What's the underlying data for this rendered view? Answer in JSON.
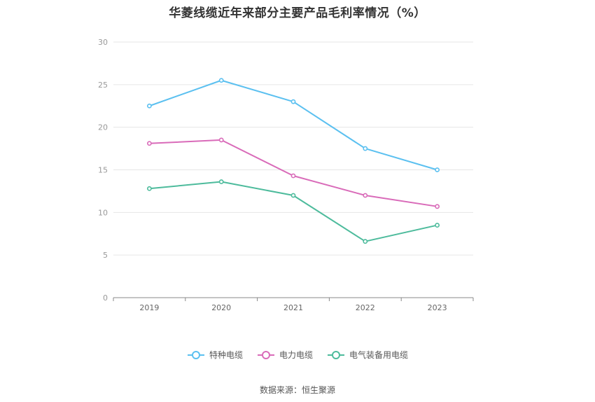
{
  "chart_data": {
    "type": "line",
    "title": "华菱线缆近年来部分主要产品毛利率情况（%）",
    "categories": [
      "2019",
      "2020",
      "2021",
      "2022",
      "2023"
    ],
    "ylim": [
      0,
      30
    ],
    "yticks": [
      0,
      5,
      10,
      15,
      20,
      25,
      30
    ],
    "grid": true,
    "legend_position": "bottom",
    "series": [
      {
        "name": "特种电缆",
        "color": "#5bc0f0",
        "values": [
          22.5,
          25.5,
          23.0,
          17.5,
          15.0
        ]
      },
      {
        "name": "电力电缆",
        "color": "#d96bb9",
        "values": [
          18.1,
          18.5,
          14.3,
          12.0,
          10.7
        ]
      },
      {
        "name": "电气装备用电缆",
        "color": "#4dbb9c",
        "values": [
          12.8,
          13.6,
          12.0,
          6.6,
          8.5
        ]
      }
    ]
  },
  "source": "数据来源：恒生聚源"
}
